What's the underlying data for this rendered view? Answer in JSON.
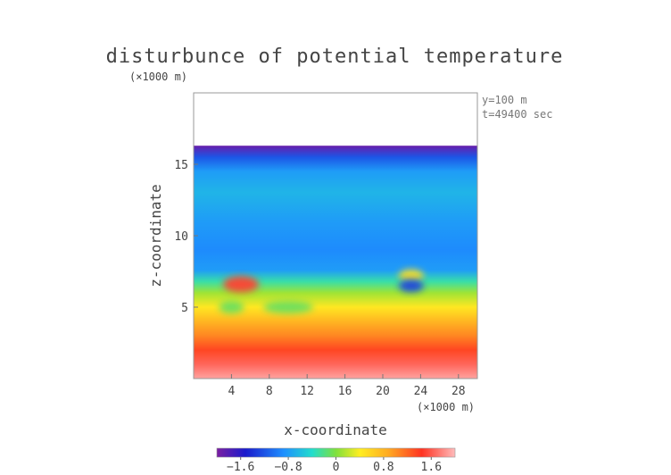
{
  "chart_data": {
    "type": "heatmap",
    "title": "disturbunce of potential temperature",
    "xlabel": "x-coordinate",
    "ylabel": "z-coordinate",
    "x_unit": "(×1000 m)",
    "y_unit": "(×1000 m)",
    "x_ticks": [
      4,
      8,
      12,
      16,
      20,
      24,
      28
    ],
    "y_ticks": [
      5,
      10,
      15
    ],
    "xlim": [
      0,
      30
    ],
    "ylim": [
      0,
      20
    ],
    "domain_top_z": 16.3,
    "annotations": [
      "y=100 m",
      "t=49400 sec"
    ],
    "colorbar": {
      "min": -2.0,
      "max": 2.0,
      "ticks": [
        -1.6,
        -0.8,
        0,
        0.8,
        1.6
      ],
      "tick_labels": [
        "−1.6",
        "−0.8",
        "0",
        "0.8",
        "1.6"
      ]
    },
    "vertical_profile": [
      {
        "z": 0.0,
        "value": 1.9
      },
      {
        "z": 1.0,
        "value": 1.65
      },
      {
        "z": 2.0,
        "value": 1.35
      },
      {
        "z": 3.0,
        "value": 1.05
      },
      {
        "z": 4.0,
        "value": 0.8
      },
      {
        "z": 5.0,
        "value": 0.45
      },
      {
        "z": 6.0,
        "value": 0.1
      },
      {
        "z": 6.8,
        "value": -0.3
      },
      {
        "z": 7.6,
        "value": -0.8
      },
      {
        "z": 9.0,
        "value": -0.9
      },
      {
        "z": 11.0,
        "value": -0.8
      },
      {
        "z": 13.0,
        "value": -0.65
      },
      {
        "z": 14.5,
        "value": -0.8
      },
      {
        "z": 15.5,
        "value": -1.2
      },
      {
        "z": 16.3,
        "value": -1.9
      }
    ],
    "features": [
      {
        "x": 5.0,
        "z": 6.6,
        "value": 1.5,
        "label": "warm bubble"
      },
      {
        "x": 23.0,
        "z": 7.2,
        "value": 0.5,
        "label": "warm patch"
      },
      {
        "x": 23.0,
        "z": 6.5,
        "value": -1.3,
        "label": "cold spot"
      },
      {
        "x": 10.0,
        "z": 5.0,
        "value": -0.1,
        "label": "green lens"
      },
      {
        "x": 4.0,
        "z": 5.0,
        "value": -0.1,
        "label": "green lens"
      }
    ]
  }
}
